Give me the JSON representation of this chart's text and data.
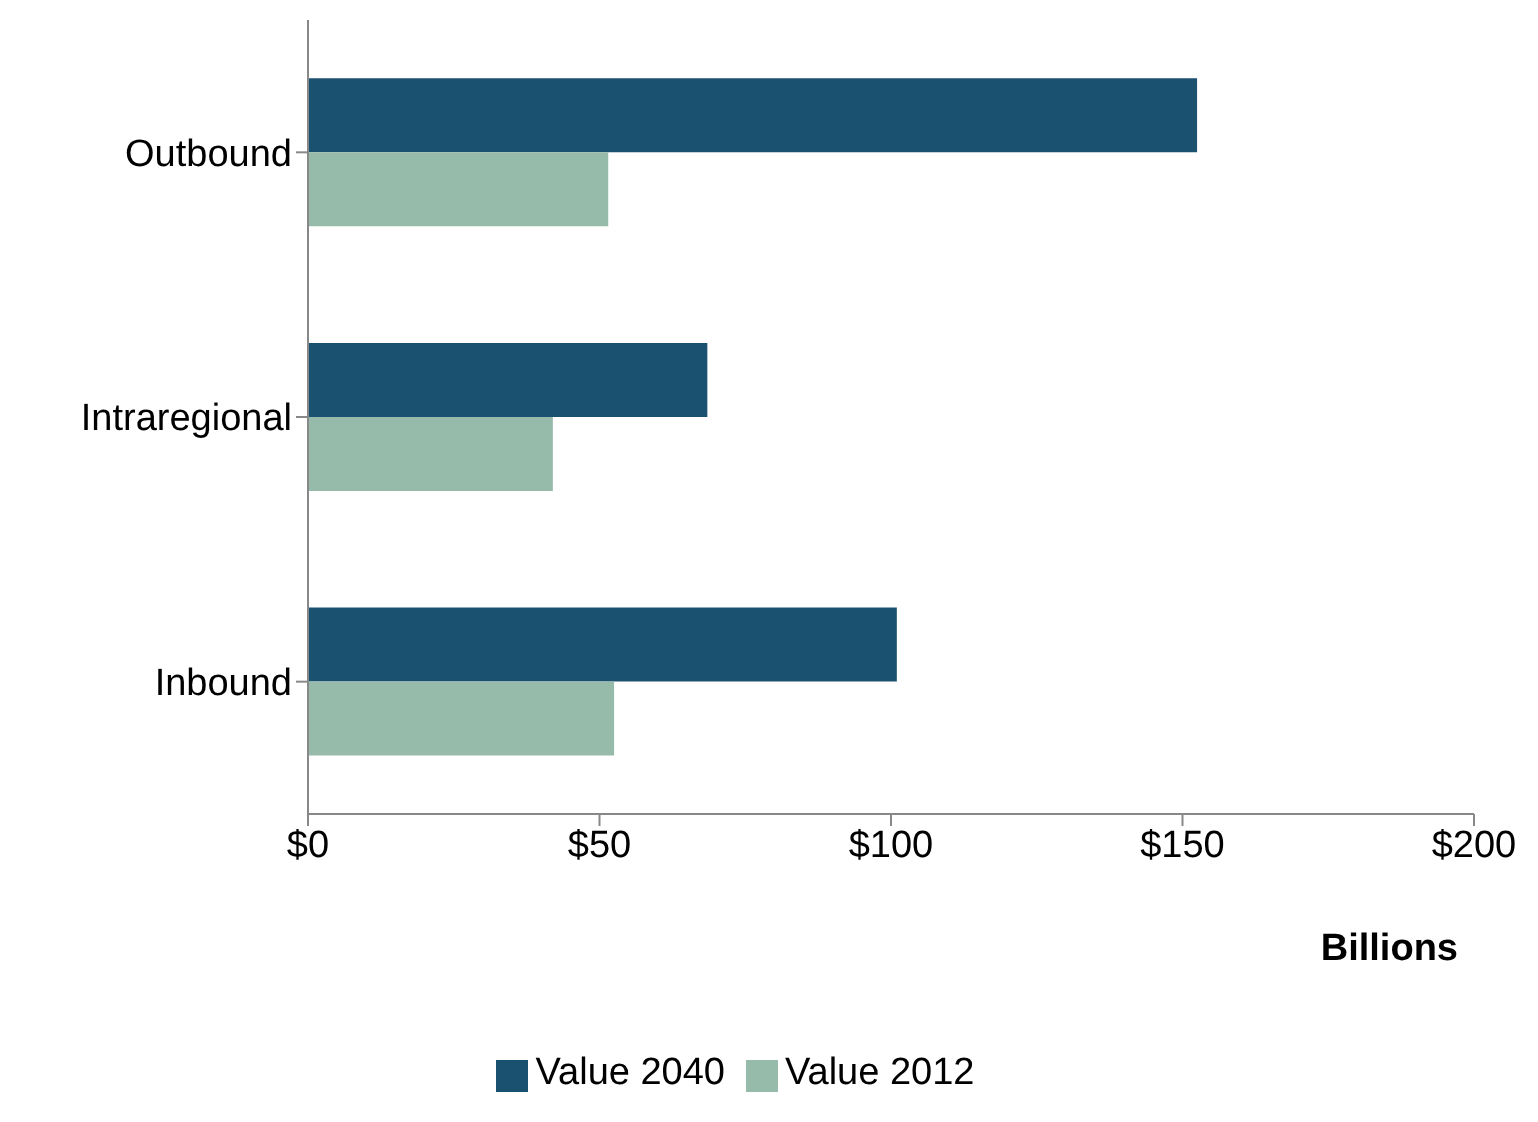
{
  "chart_data": {
    "type": "bar",
    "orientation": "horizontal",
    "categories": [
      "Outbound",
      "Intraregional",
      "Inbound"
    ],
    "series": [
      {
        "name": "Value 2040",
        "color": "#1a5170",
        "values": [
          152.5,
          68.5,
          101
        ]
      },
      {
        "name": "Value 2012",
        "color": "#97bbab",
        "values": [
          51.5,
          42,
          52.5
        ]
      }
    ],
    "xlabel": "Billions",
    "xlim": [
      0,
      200
    ],
    "xticks": [
      {
        "value": 0,
        "label": "$0"
      },
      {
        "value": 50,
        "label": "$50"
      },
      {
        "value": 100,
        "label": "$100"
      },
      {
        "value": 150,
        "label": "$150"
      },
      {
        "value": 200,
        "label": "$200"
      }
    ],
    "grid": false,
    "legend": "bottom"
  }
}
